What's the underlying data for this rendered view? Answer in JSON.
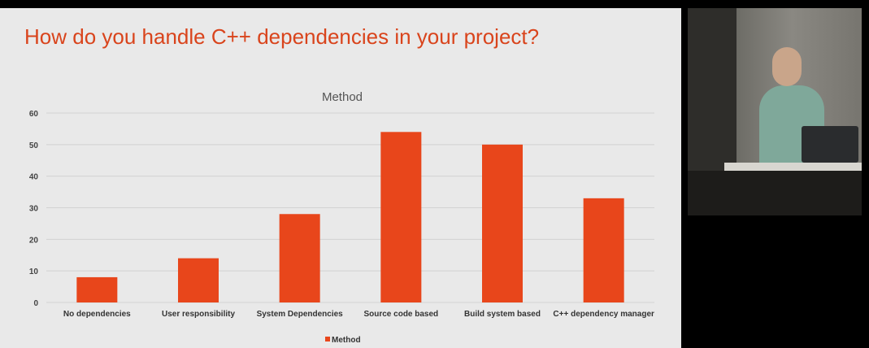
{
  "slide": {
    "title": "How do you handle C++ dependencies in your project?"
  },
  "chart_data": {
    "type": "bar",
    "title": "Method",
    "categories": [
      "No dependencies",
      "User responsibility",
      "System Dependencies",
      "Source code based",
      "Build system based",
      "C++ dependency manager"
    ],
    "series": [
      {
        "name": "Method",
        "values": [
          8,
          14,
          28,
          54,
          50,
          33
        ],
        "color": "#e8461b"
      }
    ],
    "xlabel": "",
    "ylabel": "",
    "ylim": [
      0,
      60
    ],
    "yticks": [
      0,
      10,
      20,
      30,
      40,
      50,
      60
    ],
    "grid": true,
    "legend": "bottom"
  },
  "video": {
    "description_icon": "speaker-video-feed"
  }
}
